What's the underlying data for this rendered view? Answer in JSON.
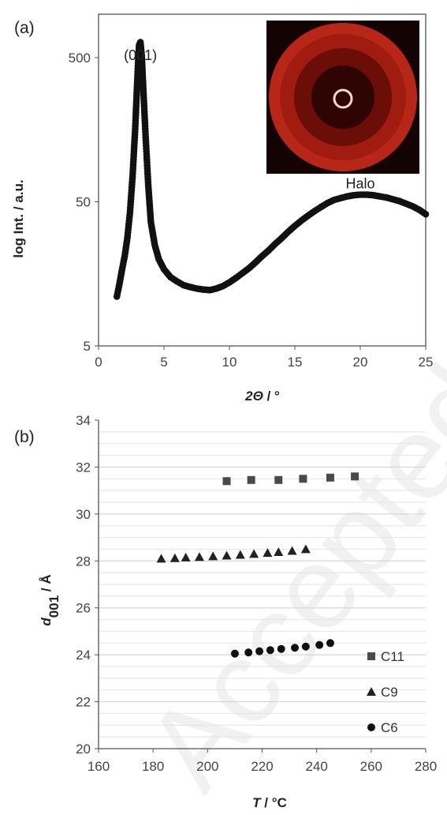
{
  "watermark": "Accepted",
  "chart_data": [
    {
      "panel_label": "(a)",
      "type": "scatter",
      "xlabel_italic": "2Θ",
      "xlabel_unit": " / °",
      "ylabel": "log Int. / a.u.",
      "xlim": [
        0,
        25
      ],
      "ylim": [
        5,
        1000
      ],
      "y_scale": "log",
      "grid": false,
      "x_ticks": [
        "0",
        "5",
        "10",
        "15",
        "20",
        "25"
      ],
      "y_ticks": [
        "5",
        "50",
        "500"
      ],
      "annotations": [
        {
          "text": "(001)",
          "x": 3.2,
          "y": 1000
        },
        {
          "text": "Halo",
          "x": 20,
          "y": 62
        }
      ],
      "inset": "2D diffraction pattern (red)",
      "series": [
        {
          "x": [
            1.4,
            1.6,
            1.8,
            2.0,
            2.2,
            2.4,
            2.6,
            2.8,
            3.0,
            3.1,
            3.2,
            3.3,
            3.4,
            3.6,
            3.8,
            4.0,
            4.3,
            4.6,
            5.0,
            5.5,
            6.0,
            6.5,
            7.0,
            7.5,
            8.0,
            8.5,
            9.0,
            9.5,
            10,
            10.5,
            11,
            11.5,
            12,
            12.5,
            13,
            13.5,
            14,
            14.5,
            15,
            15.5,
            16,
            16.5,
            17,
            17.5,
            18,
            18.5,
            19,
            19.5,
            20,
            20.5,
            21,
            21.5,
            22,
            22.5,
            23,
            23.5,
            24,
            24.5,
            25
          ],
          "y": [
            11,
            13.5,
            17,
            21,
            28,
            42,
            75,
            160,
            420,
            610,
            640,
            520,
            330,
            140,
            65,
            36,
            25,
            20,
            17,
            15,
            14,
            13.2,
            12.8,
            12.5,
            12.3,
            12.2,
            12.5,
            13,
            13.8,
            14.8,
            16,
            17.3,
            19,
            21,
            23,
            25.5,
            28,
            31,
            34,
            37,
            40,
            43,
            46,
            49,
            51.5,
            53,
            54.5,
            55.5,
            56,
            56,
            55.5,
            54.5,
            53.5,
            52,
            50.5,
            48.5,
            46.5,
            44,
            41
          ]
        }
      ]
    },
    {
      "panel_label": "(b)",
      "type": "scatter",
      "xlabel_italic": "T",
      "xlabel_unit": " / °C",
      "ylabel_italic": "d",
      "ylabel_sub": "001",
      "ylabel_unit": " / Å",
      "xlim": [
        160,
        280
      ],
      "ylim": [
        20,
        34
      ],
      "grid": true,
      "legend_position": "bottom-right",
      "x_ticks": [
        "160",
        "180",
        "200",
        "220",
        "240",
        "260",
        "280"
      ],
      "y_ticks": [
        "20",
        "22",
        "24",
        "26",
        "28",
        "30",
        "32",
        "34"
      ],
      "series": [
        {
          "name": "C11",
          "marker": "square",
          "x": [
            207,
            216,
            226,
            235,
            245,
            254
          ],
          "y": [
            31.4,
            31.45,
            31.45,
            31.5,
            31.55,
            31.6
          ]
        },
        {
          "name": "C9",
          "marker": "triangle",
          "x": [
            183,
            188,
            192,
            197,
            202,
            207,
            212,
            217,
            222,
            226,
            231,
            236
          ],
          "y": [
            28.1,
            28.12,
            28.15,
            28.17,
            28.2,
            28.23,
            28.26,
            28.3,
            28.34,
            28.38,
            28.43,
            28.5
          ]
        },
        {
          "name": "C6",
          "marker": "circle",
          "x": [
            210,
            215,
            219,
            223,
            227,
            232,
            236,
            241,
            245
          ],
          "y": [
            24.05,
            24.1,
            24.15,
            24.2,
            24.25,
            24.3,
            24.35,
            24.42,
            24.5
          ]
        }
      ]
    }
  ]
}
